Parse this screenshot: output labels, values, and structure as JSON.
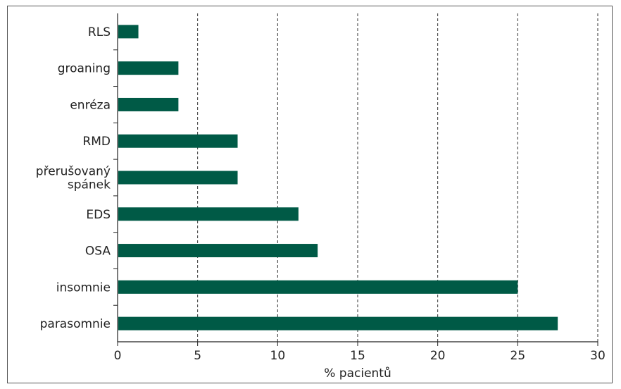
{
  "chart_data": {
    "type": "bar",
    "orientation": "horizontal",
    "categories": [
      "RLS",
      "groaning",
      "enréza",
      "RMD",
      "přerušovaný spánek",
      "EDS",
      "OSA",
      "insomnie",
      "parasomnie"
    ],
    "category_label_lines": [
      [
        "RLS"
      ],
      [
        "groaning"
      ],
      [
        "enréza"
      ],
      [
        "RMD"
      ],
      [
        "přerušovaný",
        "spánek"
      ],
      [
        "EDS"
      ],
      [
        "OSA"
      ],
      [
        "insomnie"
      ],
      [
        "parasomnie"
      ]
    ],
    "values": [
      1.3,
      3.8,
      3.8,
      7.5,
      7.5,
      11.3,
      12.5,
      25.0,
      27.5
    ],
    "xlabel": "% pacientů",
    "xlim": [
      0,
      30
    ],
    "xticks": [
      0,
      5,
      10,
      15,
      20,
      25,
      30
    ],
    "grid": "vertical-dashed",
    "colors": {
      "bar": "#005a46",
      "axis": "#222222",
      "grid": "#333333"
    }
  }
}
